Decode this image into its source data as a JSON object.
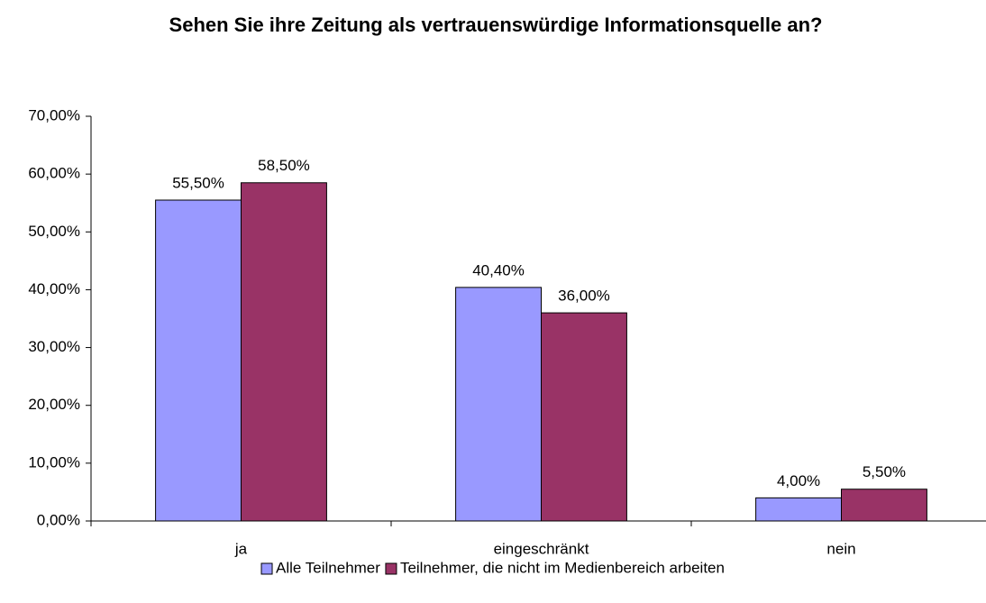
{
  "chart_data": {
    "type": "bar",
    "title": "Sehen Sie ihre Zeitung als vertrauenswürdige Informationsquelle an?",
    "categories": [
      "ja",
      "eingeschränkt",
      "nein"
    ],
    "series": [
      {
        "name": "Alle Teilnehmer",
        "color": "#9999ff",
        "values": [
          55.5,
          40.4,
          4.0
        ],
        "value_labels": [
          "55,50%",
          "40,40%",
          "4,00%"
        ]
      },
      {
        "name": "Teilnehmer, die nicht im Medienbereich arbeiten",
        "color": "#993366",
        "values": [
          58.5,
          36.0,
          5.5
        ],
        "value_labels": [
          "58,50%",
          "36,00%",
          "5,50%"
        ]
      }
    ],
    "ylim": [
      0,
      70
    ],
    "yticks": [
      {
        "value": 0,
        "label": "0,00%"
      },
      {
        "value": 10,
        "label": "10,00%"
      },
      {
        "value": 20,
        "label": "20,00%"
      },
      {
        "value": 30,
        "label": "30,00%"
      },
      {
        "value": 40,
        "label": "40,00%"
      },
      {
        "value": 50,
        "label": "50,00%"
      },
      {
        "value": 60,
        "label": "60,00%"
      },
      {
        "value": 70,
        "label": "70,00%"
      }
    ],
    "legend": "bottom"
  }
}
